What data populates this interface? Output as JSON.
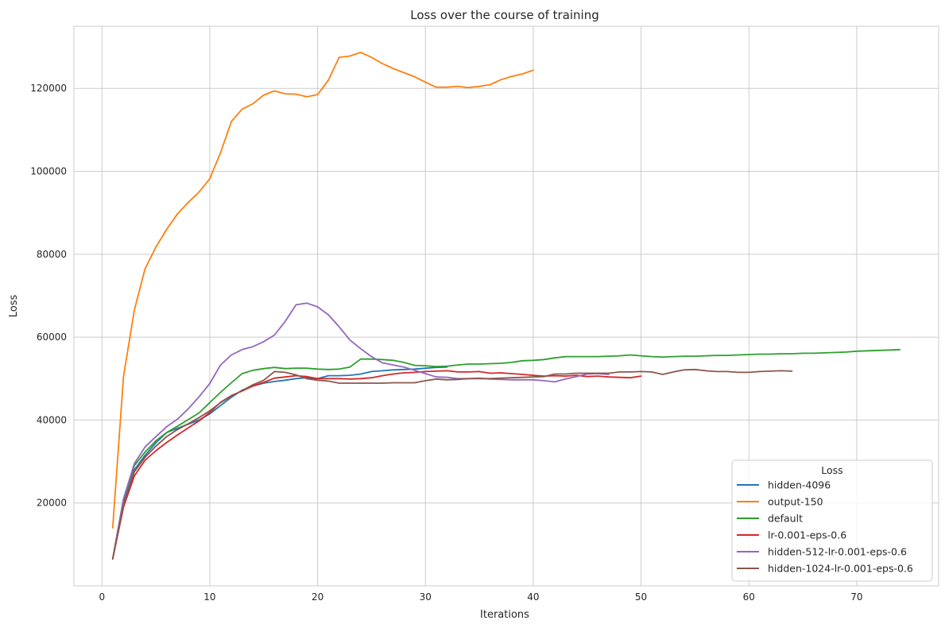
{
  "chart_data": {
    "type": "line",
    "title": "Loss over the course of training",
    "xlabel": "Iterations",
    "ylabel": "Loss",
    "xlim": [
      -2.6,
      77.6
    ],
    "ylim": [
      0,
      135000
    ],
    "xticks": [
      0,
      10,
      20,
      30,
      40,
      50,
      60,
      70
    ],
    "yticks": [
      20000,
      40000,
      60000,
      80000,
      100000,
      120000
    ],
    "grid": true,
    "legend_title": "Loss",
    "legend_position": "lower right",
    "series": [
      {
        "name": "hidden-4096",
        "color": "#1f77b4",
        "x": [
          1,
          2,
          3,
          4,
          5,
          6,
          7,
          8,
          9,
          10,
          11,
          12,
          13,
          14,
          15,
          16,
          17,
          18,
          19,
          20,
          21,
          22,
          23,
          24,
          25,
          26,
          27,
          28,
          29,
          30,
          31,
          32
        ],
        "y": [
          6500,
          20000,
          28000,
          31500,
          34500,
          37000,
          38000,
          39000,
          40000,
          41500,
          43500,
          45500,
          47200,
          48200,
          48900,
          49300,
          49600,
          50000,
          50200,
          50000,
          50700,
          50700,
          50800,
          51100,
          51700,
          51900,
          52100,
          52200,
          52300,
          52500,
          52700,
          52800
        ]
      },
      {
        "name": "output-150",
        "color": "#ff7f0e",
        "x": [
          1,
          2,
          3,
          4,
          5,
          6,
          7,
          8,
          9,
          10,
          11,
          12,
          13,
          14,
          15,
          16,
          17,
          18,
          19,
          20,
          21,
          22,
          23,
          24,
          25,
          26,
          27,
          28,
          29,
          30,
          31,
          32,
          33,
          34,
          35,
          36,
          37,
          38,
          39,
          40
        ],
        "y": [
          14000,
          50500,
          66500,
          76500,
          81700,
          86000,
          89700,
          92500,
          95000,
          98200,
          104500,
          112000,
          115000,
          116300,
          118400,
          119400,
          118700,
          118600,
          118000,
          118500,
          122000,
          127500,
          127800,
          128700,
          127500,
          126000,
          124800,
          123800,
          122800,
          121500,
          120300,
          120300,
          120500,
          120200,
          120500,
          120900,
          122100,
          122900,
          123500,
          124400
        ]
      },
      {
        "name": "default",
        "color": "#2ca02c",
        "x": [
          1,
          2,
          3,
          4,
          5,
          6,
          7,
          8,
          9,
          10,
          11,
          12,
          13,
          14,
          15,
          16,
          17,
          18,
          19,
          20,
          21,
          22,
          23,
          24,
          25,
          26,
          27,
          28,
          29,
          30,
          31,
          32,
          33,
          34,
          35,
          36,
          37,
          38,
          39,
          40,
          41,
          42,
          43,
          44,
          45,
          46,
          47,
          48,
          49,
          50,
          51,
          52,
          53,
          54,
          55,
          56,
          57,
          58,
          59,
          60,
          61,
          62,
          63,
          64,
          65,
          66,
          67,
          68,
          69,
          70,
          71,
          72,
          73,
          74
        ],
        "y": [
          6500,
          21000,
          29000,
          32300,
          35000,
          37000,
          38500,
          40100,
          41700,
          44200,
          46700,
          49000,
          51200,
          52000,
          52400,
          52700,
          52400,
          52500,
          52500,
          52300,
          52200,
          52300,
          52800,
          54700,
          54700,
          54600,
          54400,
          53900,
          53200,
          53100,
          52900,
          53000,
          53300,
          53500,
          53500,
          53600,
          53700,
          53900,
          54300,
          54400,
          54600,
          55000,
          55300,
          55300,
          55300,
          55300,
          55400,
          55500,
          55700,
          55500,
          55300,
          55200,
          55300,
          55400,
          55400,
          55500,
          55600,
          55600,
          55700,
          55800,
          55900,
          55900,
          56000,
          56000,
          56100,
          56100,
          56200,
          56300,
          56400,
          56600,
          56700,
          56800,
          56900,
          57000
        ]
      },
      {
        "name": "lr-0.001-eps-0.6",
        "color": "#d62728",
        "x": [
          1,
          2,
          3,
          4,
          5,
          6,
          7,
          8,
          9,
          10,
          11,
          12,
          13,
          14,
          15,
          16,
          17,
          18,
          19,
          20,
          21,
          22,
          23,
          24,
          25,
          26,
          27,
          28,
          29,
          30,
          31,
          32,
          33,
          34,
          35,
          36,
          37,
          38,
          39,
          40,
          41,
          42,
          43,
          44,
          45,
          46,
          47,
          48,
          49,
          50
        ],
        "y": [
          6500,
          19000,
          26500,
          30300,
          32600,
          34600,
          36400,
          38100,
          39800,
          41800,
          44300,
          45900,
          47000,
          48200,
          49100,
          50100,
          50400,
          50700,
          50500,
          50000,
          50000,
          50000,
          49900,
          50000,
          50200,
          50700,
          51100,
          51400,
          51500,
          51700,
          51800,
          51900,
          51600,
          51600,
          51700,
          51300,
          51400,
          51200,
          51000,
          50800,
          50600,
          50700,
          50600,
          50800,
          50500,
          50600,
          50400,
          50300,
          50200,
          50600
        ]
      },
      {
        "name": "hidden-512-lr-0.001-eps-0.6",
        "color": "#9467bd",
        "x": [
          1,
          2,
          3,
          4,
          5,
          6,
          7,
          8,
          9,
          10,
          11,
          12,
          13,
          14,
          15,
          16,
          17,
          18,
          19,
          20,
          21,
          22,
          23,
          24,
          25,
          26,
          27,
          28,
          29,
          30,
          31,
          32,
          33,
          34,
          35,
          36,
          37,
          38,
          39,
          40,
          41,
          42,
          43,
          44,
          45,
          46,
          47
        ],
        "y": [
          6500,
          21000,
          29500,
          33500,
          36000,
          38400,
          40200,
          42700,
          45600,
          48800,
          53300,
          55700,
          57000,
          57700,
          58900,
          60500,
          63800,
          67800,
          68200,
          67300,
          65400,
          62500,
          59300,
          57200,
          55300,
          53800,
          53300,
          52800,
          52000,
          51200,
          50400,
          50300,
          50000,
          50000,
          50100,
          49900,
          49800,
          49700,
          49700,
          49700,
          49500,
          49200,
          49900,
          50500,
          51100,
          51200,
          51000
        ]
      },
      {
        "name": "hidden-1024-lr-0.001-eps-0.6",
        "color": "#8c564b",
        "x": [
          1,
          2,
          3,
          4,
          5,
          6,
          7,
          8,
          9,
          10,
          11,
          12,
          13,
          14,
          15,
          16,
          17,
          18,
          19,
          20,
          21,
          22,
          23,
          24,
          25,
          26,
          27,
          28,
          29,
          30,
          31,
          32,
          33,
          34,
          35,
          36,
          37,
          38,
          39,
          40,
          41,
          42,
          43,
          44,
          45,
          46,
          47,
          48,
          49,
          50,
          51,
          52,
          53,
          54,
          55,
          56,
          57,
          58,
          59,
          60,
          61,
          62,
          63,
          64
        ],
        "y": [
          6500,
          19500,
          27500,
          31000,
          33700,
          36000,
          37700,
          39100,
          40600,
          42200,
          44200,
          45800,
          47100,
          48500,
          49600,
          51700,
          51500,
          50900,
          50000,
          49600,
          49400,
          48900,
          48900,
          48900,
          48900,
          48900,
          49000,
          49000,
          49000,
          49500,
          49900,
          49700,
          49800,
          50000,
          50000,
          50000,
          50100,
          50200,
          50300,
          50400,
          50500,
          51100,
          51100,
          51300,
          51300,
          51300,
          51300,
          51600,
          51600,
          51700,
          51600,
          51000,
          51600,
          52100,
          52200,
          51900,
          51700,
          51700,
          51500,
          51500,
          51700,
          51800,
          51900,
          51800
        ]
      }
    ]
  }
}
